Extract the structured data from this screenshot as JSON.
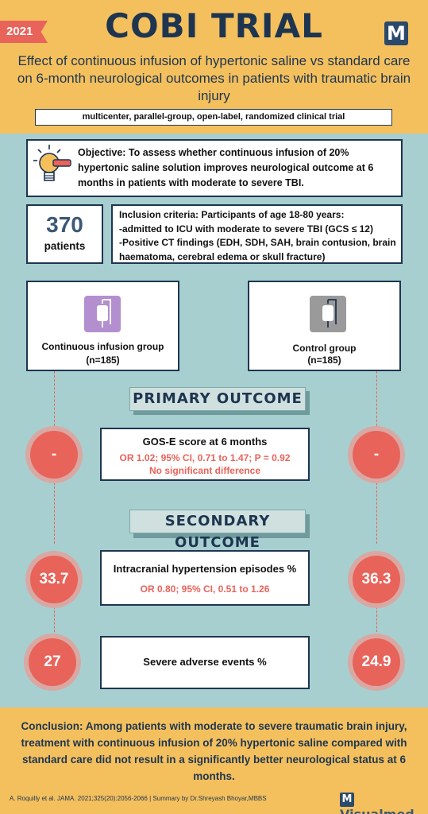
{
  "header": {
    "year": "2021",
    "title": "COBI TRIAL",
    "logo_letter": "M",
    "subtitle": "Effect of continuous infusion of hypertonic saline vs standard care on 6-month neurological outcomes in patients with traumatic brain injury",
    "design": "multicenter, parallel-group, open-label, randomized clinical trial"
  },
  "objective": {
    "icon": "lightbulb-icon",
    "text": "Objective: To assess whether continuous infusion of 20% hypertonic saline solution improves neurological outcome at 6 months in patients with moderate to severe TBI."
  },
  "patients": {
    "count": "370",
    "label": "patients"
  },
  "inclusion": {
    "line1": "Inclusion criteria: Participants of age 18-80 years:",
    "line2": "-admitted to ICU with moderate to severe TBI (GCS ≤ 12)",
    "line3": "-Positive CT findings (EDH, SDH, SAH, brain contusion, brain haematoma, cerebral edema or skull fracture)"
  },
  "groups": {
    "intervention": {
      "name": "Continuous infusion group",
      "n": "(n=185)",
      "icon": "iv-bag-icon",
      "color": "#b38fcf"
    },
    "control": {
      "name": "Control group",
      "n": "(n=185)",
      "icon": "iv-bag-icon",
      "color": "#9a9a9a"
    }
  },
  "primary": {
    "heading": "PRIMARY OUTCOME",
    "title": "GOS-E score at 6 months",
    "stat1": "OR 1.02; 95% CI, 0.71 to 1.47; P = 0.92",
    "stat2": "No significant difference",
    "left_value": "-",
    "right_value": "-"
  },
  "secondary": {
    "heading": "SECONDARY OUTCOME",
    "ich": {
      "title": "Intracranial hypertension episodes %",
      "stat": "OR 0.80; 95% CI, 0.51 to 1.26",
      "left_value": "33.7",
      "right_value": "36.3"
    },
    "sae": {
      "title": "Severe adverse events %",
      "left_value": "27",
      "right_value": "24.9"
    }
  },
  "conclusion": "Conclusion: Among patients with moderate to severe traumatic brain injury, treatment with continuous infusion of 20% hypertonic saline compared with standard care did not result in a significantly better neurological status at 6 months.",
  "footer": {
    "citation": "A. Roquilly et al. JAMA. 2021;325(20):2056-2066 | Summary by Dr.Shreyash Bhoyar,MBBS",
    "brand": "Visualmed",
    "brand_letter": "M"
  },
  "colors": {
    "accent": "#e8635a",
    "navy": "#1e3550",
    "yellow": "#f4c05e",
    "teal": "#a7cfd0"
  }
}
